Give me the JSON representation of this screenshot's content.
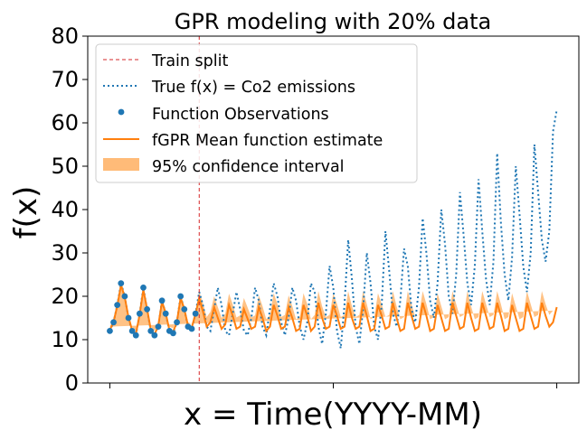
{
  "chart_data": {
    "type": "line",
    "title": "GPR modeling with 20% data",
    "xlabel": "x = Time(YYYY-MM)",
    "ylabel": "f(x)",
    "ylim": [
      0,
      80
    ],
    "y_ticks": [
      0,
      10,
      20,
      30,
      40,
      50,
      60,
      70,
      80
    ],
    "x_tick_labels": [
      "",
      "",
      ""
    ],
    "grid": false,
    "legend_position": "top-left",
    "legend": [
      {
        "label": "Train split",
        "key": "train_split"
      },
      {
        "label": "True f(x) = Co2 emissions",
        "key": "true_series"
      },
      {
        "label": "Function Observations",
        "key": "observations"
      },
      {
        "label": "fGPR Mean function estimate",
        "key": "mean"
      },
      {
        "label": "95% confidence interval",
        "key": "ci"
      }
    ],
    "colors": {
      "true": "#1f77b4",
      "observations": "#1f77b4",
      "mean": "#ff7f0e",
      "ci": "#ffbb78",
      "split": "#d62728"
    },
    "train_split_index": 24,
    "x_start": 0,
    "x_end": 120,
    "true_values": [
      12.0,
      14.0,
      18.0,
      23.0,
      20.0,
      15.0,
      12.0,
      11.0,
      16.0,
      22.0,
      17.0,
      12.0,
      11.0,
      13.0,
      19.0,
      16.0,
      12.0,
      11.5,
      14.0,
      20.0,
      17.0,
      13.0,
      12.5,
      16.0,
      21.0,
      18.0,
      13.0,
      12.0,
      17.0,
      22.0,
      18.0,
      12.0,
      11.0,
      16.0,
      21.0,
      17.0,
      12.0,
      11.0,
      15.0,
      22.0,
      19.0,
      13.0,
      11.0,
      17.0,
      23.0,
      20.0,
      14.0,
      11.0,
      15.0,
      22.0,
      19.0,
      13.0,
      10.0,
      14.0,
      23.0,
      21.0,
      13.0,
      9.0,
      16.0,
      27.0,
      22.0,
      12.0,
      8.0,
      18.0,
      33.0,
      24.0,
      13.0,
      9.0,
      17.0,
      30.0,
      23.0,
      13.0,
      10.0,
      18.0,
      35.0,
      26.0,
      16.0,
      13.0,
      19.0,
      31.0,
      27.0,
      17.0,
      14.0,
      22.0,
      38.0,
      30.0,
      19.0,
      15.0,
      23.0,
      40.0,
      32.0,
      20.0,
      16.0,
      25.0,
      44.0,
      34.0,
      23.0,
      18.0,
      27.0,
      47.0,
      35.0,
      24.0,
      18.0,
      28.0,
      53.0,
      37.0,
      25.0,
      19.0,
      29.0,
      50.0,
      39.0,
      27.0,
      21.0,
      30.0,
      55.0,
      44.0,
      33.0,
      28.0,
      35.0,
      58.0,
      63.0
    ],
    "observation_values": [
      12.0,
      14.0,
      18.0,
      23.0,
      20.0,
      15.0,
      12.0,
      11.0,
      16.0,
      22.0,
      17.0,
      12.0,
      11.0,
      13.0,
      19.0,
      16.0,
      12.0,
      11.5,
      14.0,
      20.0,
      17.0,
      13.0,
      12.5,
      16.0
    ],
    "mean_values": [
      12.2,
      14.1,
      17.8,
      22.6,
      19.8,
      15.2,
      12.1,
      11.3,
      15.8,
      21.5,
      17.1,
      12.3,
      11.2,
      13.2,
      18.7,
      16.1,
      12.2,
      11.8,
      14.1,
      19.6,
      17.0,
      13.2,
      12.8,
      15.9,
      19.5,
      16.5,
      13.0,
      14.0,
      17.5,
      15.0,
      12.5,
      13.5,
      18.0,
      15.5,
      12.5,
      13.0,
      17.0,
      14.8,
      12.5,
      13.0,
      17.5,
      15.0,
      12.0,
      13.0,
      18.0,
      15.5,
      12.5,
      13.0,
      17.5,
      15.0,
      12.0,
      12.5,
      18.0,
      15.5,
      12.0,
      13.0,
      18.5,
      15.0,
      12.5,
      13.0,
      18.0,
      15.5,
      12.5,
      13.0,
      18.5,
      15.0,
      12.5,
      13.0,
      18.5,
      15.5,
      12.0,
      12.5,
      18.0,
      15.5,
      12.5,
      13.0,
      18.5,
      15.0,
      12.0,
      12.5,
      18.5,
      15.5,
      12.5,
      13.0,
      18.5,
      15.5,
      12.0,
      12.5,
      18.0,
      15.0,
      12.0,
      12.5,
      18.5,
      15.5,
      12.5,
      13.0,
      18.5,
      15.0,
      12.0,
      12.5,
      18.5,
      15.5,
      12.5,
      13.0,
      18.5,
      15.5,
      12.0,
      12.5,
      18.0,
      15.0,
      12.0,
      12.5,
      18.5,
      15.5,
      12.5,
      13.0,
      18.5,
      15.5,
      13.0,
      14.0,
      17.5
    ],
    "ci_halfwidth": [
      0.8,
      0.8,
      0.8,
      0.8,
      0.8,
      0.8,
      0.8,
      0.8,
      0.8,
      0.8,
      0.8,
      0.8,
      0.8,
      0.8,
      0.8,
      0.8,
      0.8,
      0.8,
      0.8,
      0.8,
      0.8,
      0.8,
      0.8,
      0.8,
      1.6,
      2.0,
      2.2,
      2.4,
      2.5,
      2.5,
      2.5,
      2.5,
      2.6,
      2.6,
      2.6,
      2.6,
      2.6,
      2.6,
      2.6,
      2.6,
      2.7,
      2.7,
      2.7,
      2.7,
      2.7,
      2.7,
      2.7,
      2.7,
      2.7,
      2.7,
      2.7,
      2.7,
      2.7,
      2.7,
      2.7,
      2.7,
      2.7,
      2.7,
      2.7,
      2.7,
      2.7,
      2.7,
      2.7,
      2.7,
      2.7,
      2.7,
      2.7,
      2.7,
      2.7,
      2.7,
      2.7,
      2.7,
      2.7,
      2.7,
      2.7,
      2.7,
      2.7,
      2.7,
      2.7,
      2.7,
      2.7,
      2.7,
      2.7,
      2.7,
      2.7,
      2.7,
      2.7,
      2.7,
      2.7,
      2.7,
      2.7,
      2.7,
      2.7,
      2.7,
      2.7,
      2.7,
      2.7,
      2.7,
      2.7,
      2.7,
      2.7,
      2.7,
      2.7,
      2.7,
      2.7,
      2.7,
      2.7,
      2.7,
      2.7,
      2.7,
      2.7,
      2.7,
      2.7,
      2.7,
      2.7,
      2.7,
      2.7,
      2.7,
      2.7,
      2.7
    ]
  }
}
